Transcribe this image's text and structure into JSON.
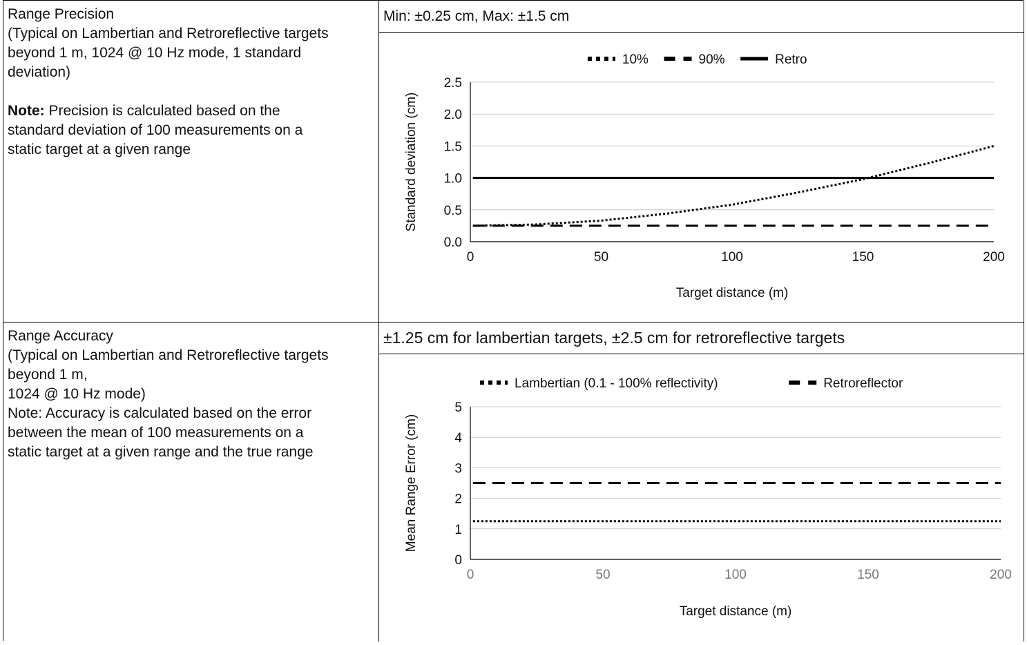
{
  "rows": [
    {
      "title": "Range Precision",
      "desc_lines": [
        "(Typical on Lambertian and Retroreflective targets",
        "beyond 1 m, 1024 @ 10 Hz mode, 1 standard",
        "deviation)"
      ],
      "note_bold": "Note:",
      "note_lines": [
        " Precision is calculated based on the",
        "standard deviation of 100 measurements on a",
        "static target at a given range"
      ],
      "spec": "Min: ±0.25 cm, Max: ±1.5 cm"
    },
    {
      "title": "Range Accuracy",
      "desc_lines": [
        "(Typical on Lambertian and Retroreflective targets",
        "beyond 1 m,",
        "1024 @ 10 Hz mode)",
        "Note: Accuracy is calculated based on the error",
        "between the mean of 100 measurements on a",
        "static target at a given range and the true range"
      ],
      "spec": "±1.25 cm for lambertian targets, ±2.5 cm for retroreflective targets"
    }
  ],
  "chart_data": [
    {
      "type": "line",
      "title": "",
      "xlabel": "Target distance (m)",
      "ylabel": "Standard deviation (cm)",
      "xlim": [
        0,
        200
      ],
      "ylim": [
        0,
        2.5
      ],
      "x_ticks": [
        "0",
        "50",
        "100",
        "150",
        "200"
      ],
      "y_ticks": [
        "0.0",
        "0.5",
        "1.0",
        "1.5",
        "2.0",
        "2.5"
      ],
      "grid": true,
      "legend_position": "top",
      "series": [
        {
          "name": "10%",
          "style": "dotted",
          "color": "#000000",
          "x": [
            1,
            25,
            50,
            75,
            100,
            125,
            150,
            175,
            200
          ],
          "y": [
            0.25,
            0.27,
            0.33,
            0.44,
            0.58,
            0.77,
            0.98,
            1.23,
            1.5
          ]
        },
        {
          "name": "90%",
          "style": "dashed",
          "color": "#000000",
          "x": [
            1,
            200
          ],
          "y": [
            0.25,
            0.25
          ]
        },
        {
          "name": "Retro",
          "style": "solid",
          "color": "#000000",
          "x": [
            1,
            200
          ],
          "y": [
            1.0,
            1.0
          ]
        }
      ]
    },
    {
      "type": "line",
      "title": "",
      "xlabel": "Target distance (m)",
      "ylabel": "Mean Range Error (cm)",
      "xlim": [
        0,
        200
      ],
      "ylim": [
        0,
        5
      ],
      "x_ticks": [
        "0",
        "50",
        "100",
        "150",
        "200"
      ],
      "y_ticks": [
        "0",
        "1",
        "2",
        "3",
        "4",
        "5"
      ],
      "grid": true,
      "legend_position": "top",
      "series": [
        {
          "name": "Lambertian (0.1 - 100% reflectivity)",
          "style": "dotted",
          "color": "#000000",
          "x": [
            1,
            200
          ],
          "y": [
            1.25,
            1.25
          ]
        },
        {
          "name": "Retroreflector",
          "style": "dashed",
          "color": "#000000",
          "x": [
            1,
            200
          ],
          "y": [
            2.5,
            2.5
          ]
        }
      ]
    }
  ]
}
